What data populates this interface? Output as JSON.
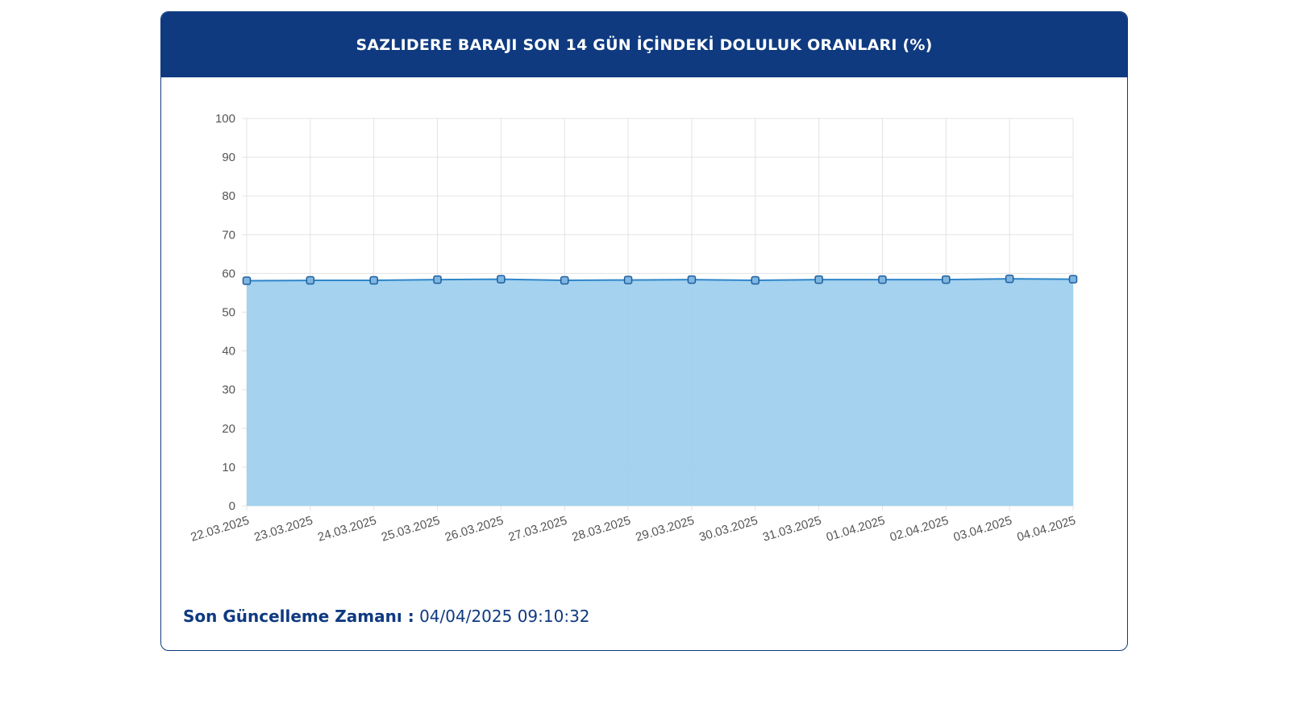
{
  "header": {
    "title": "SAZLIDERE BARAJI SON 14 GÜN İÇİNDEKİ DOLULUK ORANLARI (%)"
  },
  "footer": {
    "label": "Son Güncelleme Zamanı :",
    "value": "04/04/2025 09:10:32"
  },
  "colors": {
    "header_bg": "#0f3a80",
    "area_fill": "#9fd0ee",
    "line": "#2f86c9",
    "point_fill": "#7fb6e0",
    "point_stroke": "#1f5f9e",
    "grid": "#e3e3e3"
  },
  "chart_data": {
    "type": "area",
    "title": "SAZLIDERE BARAJI SON 14 GÜN İÇİNDEKİ DOLULUK ORANLARI (%)",
    "categories": [
      "22.03.2025",
      "23.03.2025",
      "24.03.2025",
      "25.03.2025",
      "26.03.2025",
      "27.03.2025",
      "28.03.2025",
      "29.03.2025",
      "30.03.2025",
      "31.03.2025",
      "01.04.2025",
      "02.04.2025",
      "03.04.2025",
      "04.04.2025"
    ],
    "values": [
      58.1,
      58.2,
      58.2,
      58.4,
      58.5,
      58.2,
      58.3,
      58.4,
      58.2,
      58.4,
      58.4,
      58.4,
      58.6,
      58.5
    ],
    "ylim": [
      0,
      100
    ],
    "yticks": [
      0,
      10,
      20,
      30,
      40,
      50,
      60,
      70,
      80,
      90,
      100
    ],
    "grid": true,
    "legend": "none"
  }
}
